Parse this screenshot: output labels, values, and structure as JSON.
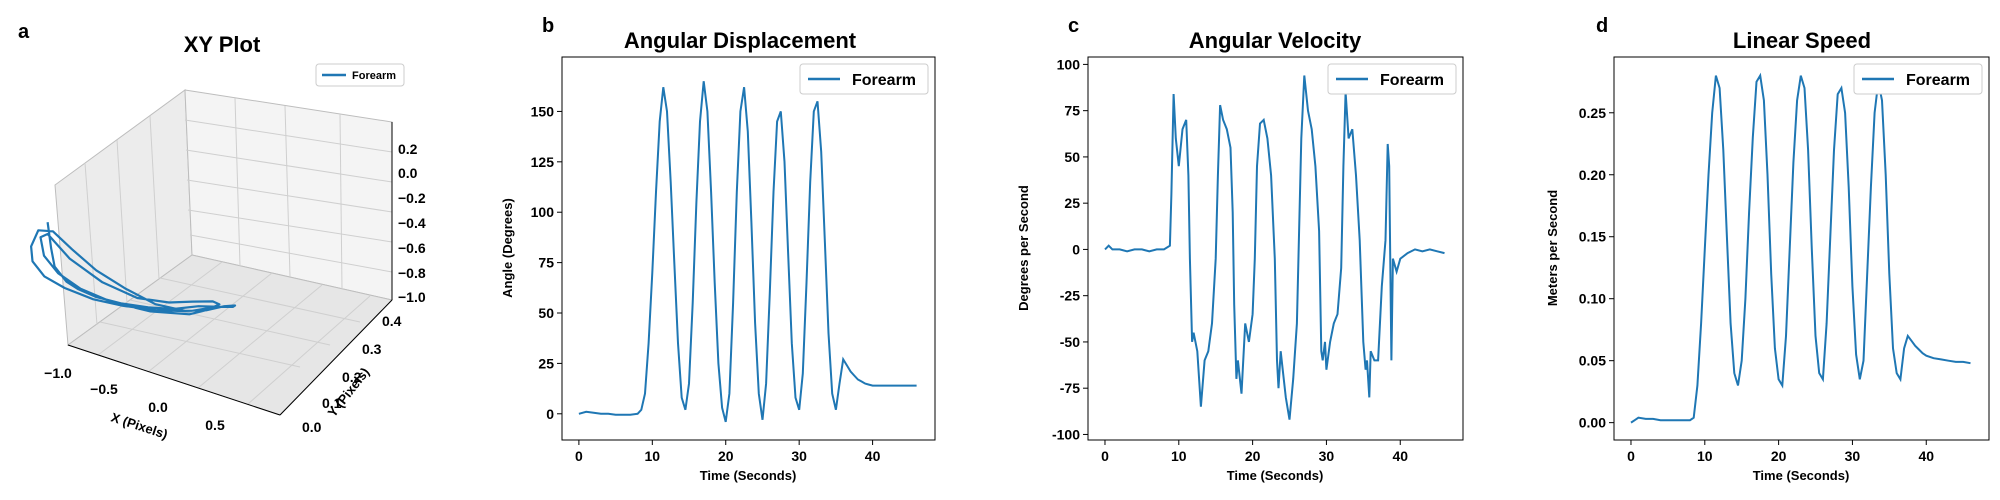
{
  "colors": {
    "series": "#1f77b4",
    "axis": "#000000",
    "pane": "#f2f2f2",
    "grid": "#d0d0d0"
  },
  "chart_data": [
    {
      "panel_label": "a",
      "type": "line3d",
      "title": "XY Plot",
      "xlabel": "X (Pixels)",
      "ylabel": "Y (Pixels)",
      "zlabel": "",
      "xlim": [
        -1.0,
        1.0
      ],
      "ylim": [
        0.0,
        0.4
      ],
      "zlim": [
        -1.0,
        0.2
      ],
      "xticks": [
        "−1.0",
        "−0.5",
        "0.0",
        "0.5"
      ],
      "yticks": [
        "0.0",
        "0.1",
        "0.2",
        "0.3",
        "0.4"
      ],
      "zticks": [
        "0.2",
        "0.0",
        "−0.2",
        "−0.4",
        "−0.6",
        "−0.8",
        "−1.0"
      ],
      "legend": {
        "label": "Forearm",
        "loc": "upper right"
      },
      "grid": true,
      "series": [
        {
          "name": "Forearm",
          "x": [
            -0.9,
            -0.75,
            -0.6,
            -0.4,
            -0.2,
            0.0,
            0.2,
            0.4,
            0.55,
            0.7,
            0.8,
            0.82,
            0.78,
            0.65,
            0.45,
            0.25,
            0.0,
            -0.25,
            -0.5,
            -0.7,
            -0.85,
            -0.9,
            -0.88,
            -0.75,
            -0.55,
            -0.3,
            0.0,
            0.25,
            0.5,
            0.7,
            0.8,
            0.75,
            0.6,
            0.35,
            0.1,
            -0.2,
            -0.5,
            -0.75,
            -0.9,
            -0.85,
            -0.7,
            -0.45,
            -0.15,
            0.15,
            0.45,
            0.7,
            0.82
          ],
          "y": [
            0.1,
            0.14,
            0.18,
            0.21,
            0.24,
            0.25,
            0.24,
            0.22,
            0.19,
            0.16,
            0.12,
            0.09,
            0.07,
            0.06,
            0.05,
            0.05,
            0.06,
            0.07,
            0.08,
            0.09,
            0.1,
            0.13,
            0.16,
            0.2,
            0.23,
            0.25,
            0.26,
            0.25,
            0.23,
            0.19,
            0.15,
            0.11,
            0.08,
            0.06,
            0.05,
            0.05,
            0.06,
            0.08,
            0.1,
            0.14,
            0.18,
            0.22,
            0.25,
            0.25,
            0.23,
            0.19,
            0.15
          ],
          "z": [
            -0.3,
            -0.5,
            -0.65,
            -0.75,
            -0.8,
            -0.82,
            -0.8,
            -0.75,
            -0.68,
            -0.58,
            -0.5,
            -0.45,
            -0.42,
            -0.44,
            -0.5,
            -0.55,
            -0.58,
            -0.55,
            -0.5,
            -0.42,
            -0.35,
            -0.4,
            -0.55,
            -0.68,
            -0.78,
            -0.83,
            -0.85,
            -0.82,
            -0.76,
            -0.66,
            -0.55,
            -0.48,
            -0.45,
            -0.48,
            -0.53,
            -0.57,
            -0.55,
            -0.48,
            -0.38,
            -0.45,
            -0.6,
            -0.72,
            -0.8,
            -0.82,
            -0.78,
            -0.68,
            -0.55
          ]
        }
      ]
    },
    {
      "panel_label": "b",
      "type": "line",
      "title": "Angular Displacement",
      "xlabel": "Time (Seconds)",
      "ylabel": "Angle (Degrees)",
      "xlim": [
        -2.3,
        48.5
      ],
      "ylim": [
        -13,
        177
      ],
      "xticks": [
        0,
        10,
        20,
        30,
        40
      ],
      "yticks": [
        0,
        25,
        50,
        75,
        100,
        125,
        150
      ],
      "legend": {
        "label": "Forearm",
        "loc": "upper right"
      },
      "grid": false,
      "series": [
        {
          "name": "Forearm",
          "x": [
            0,
            1,
            2,
            3,
            4,
            5,
            6,
            7,
            8,
            8.5,
            9,
            9.5,
            10,
            10.5,
            11,
            11.5,
            12,
            12.5,
            13,
            13.5,
            14,
            14.5,
            15,
            15.5,
            16,
            16.5,
            17,
            17.5,
            18,
            18.5,
            19,
            19.5,
            20,
            20.5,
            21,
            21.5,
            22,
            22.5,
            23,
            23.5,
            24,
            24.5,
            25,
            25.5,
            26,
            26.5,
            27,
            27.5,
            28,
            28.5,
            29,
            29.5,
            30,
            30.5,
            31,
            31.5,
            32,
            32.5,
            33,
            33.5,
            34,
            34.5,
            35,
            35.5,
            36,
            36.5,
            37,
            37.5,
            38,
            38.5,
            39,
            39.5,
            40,
            41,
            42,
            43,
            44,
            45,
            46
          ],
          "y": [
            0,
            1,
            0.5,
            0,
            0,
            -0.5,
            -0.5,
            -0.5,
            0,
            2,
            10,
            35,
            70,
            110,
            145,
            162,
            150,
            115,
            75,
            35,
            8,
            2,
            15,
            55,
            105,
            145,
            165,
            150,
            110,
            65,
            25,
            3,
            -4,
            10,
            55,
            110,
            150,
            162,
            140,
            95,
            45,
            10,
            -3,
            15,
            60,
            110,
            145,
            150,
            125,
            80,
            35,
            8,
            2,
            20,
            65,
            115,
            150,
            155,
            130,
            85,
            40,
            10,
            2,
            15,
            27,
            24,
            21,
            19,
            17,
            16,
            15,
            14.5,
            14,
            14,
            14,
            14,
            14,
            14,
            14
          ]
        }
      ]
    },
    {
      "panel_label": "c",
      "type": "line",
      "title": "Angular Velocity",
      "xlabel": "Time (Seconds)",
      "ylabel": "Degrees per Second",
      "xlim": [
        -2.3,
        48.5
      ],
      "ylim": [
        -103,
        104
      ],
      "xticks": [
        0,
        10,
        20,
        30,
        40
      ],
      "yticks": [
        -100,
        -75,
        -50,
        -25,
        0,
        25,
        50,
        75,
        100
      ],
      "legend": {
        "label": "Forearm",
        "loc": "upper right"
      },
      "grid": false,
      "series": [
        {
          "name": "Forearm",
          "x": [
            0,
            0.5,
            1,
            2,
            3,
            4,
            5,
            6,
            7,
            8,
            8.8,
            9,
            9.3,
            9.6,
            10,
            10.5,
            11,
            11.3,
            11.5,
            11.8,
            12,
            12.5,
            13,
            13.5,
            14,
            14.5,
            15,
            15.3,
            15.6,
            16,
            16.5,
            17,
            17.3,
            17.5,
            17.8,
            18,
            18.5,
            19,
            19.5,
            20,
            20.3,
            20.6,
            21,
            21.5,
            22,
            22.5,
            23,
            23.3,
            23.5,
            23.8,
            24,
            24.5,
            25,
            25.5,
            26,
            26.3,
            26.6,
            27,
            27.5,
            28,
            28.5,
            29,
            29.3,
            29.5,
            29.8,
            30,
            30.5,
            31,
            31.5,
            32,
            32.3,
            32.6,
            33,
            33.5,
            34,
            34.5,
            35,
            35.3,
            35.5,
            35.8,
            36,
            36.5,
            37,
            37.5,
            38,
            38.3,
            38.5,
            38.8,
            39,
            39.5,
            40,
            41,
            42,
            43,
            44,
            45,
            46
          ],
          "y": [
            0,
            2,
            0,
            0,
            -1,
            0,
            0,
            -1,
            0,
            0,
            2,
            30,
            84,
            60,
            45,
            65,
            70,
            40,
            -5,
            -50,
            -45,
            -55,
            -85,
            -60,
            -55,
            -40,
            -5,
            40,
            78,
            70,
            65,
            55,
            20,
            -30,
            -70,
            -60,
            -78,
            -40,
            -50,
            -35,
            -5,
            45,
            68,
            70,
            60,
            40,
            -5,
            -60,
            -75,
            -55,
            -62,
            -80,
            -92,
            -70,
            -40,
            10,
            60,
            94,
            75,
            65,
            45,
            10,
            -55,
            -60,
            -50,
            -65,
            -50,
            -40,
            -35,
            -10,
            45,
            85,
            60,
            65,
            40,
            5,
            -50,
            -65,
            -60,
            -80,
            -55,
            -60,
            -60,
            -20,
            5,
            57,
            45,
            -60,
            -5,
            -12,
            -5,
            -2,
            0,
            -1,
            0,
            -1,
            -2
          ]
        }
      ]
    },
    {
      "panel_label": "d",
      "type": "line",
      "title": "Linear Speed",
      "xlabel": "Time (Seconds)",
      "ylabel": "Meters per Second",
      "xlim": [
        -2.3,
        48.5
      ],
      "ylim": [
        -0.014,
        0.295
      ],
      "xticks": [
        0,
        10,
        20,
        30,
        40
      ],
      "yticks": [
        0.0,
        0.05,
        0.1,
        0.15,
        0.2,
        0.25
      ],
      "ytick_labels": [
        "0.00",
        "0.05",
        "0.10",
        "0.15",
        "0.20",
        "0.25"
      ],
      "legend": {
        "label": "Forearm",
        "loc": "upper right"
      },
      "grid": false,
      "series": [
        {
          "name": "Forearm",
          "x": [
            0,
            0.5,
            1,
            2,
            3,
            4,
            5,
            6,
            7,
            8,
            8.5,
            9,
            9.5,
            10,
            10.5,
            11,
            11.5,
            12,
            12.5,
            13,
            13.5,
            14,
            14.5,
            15,
            15.5,
            16,
            16.5,
            17,
            17.5,
            18,
            18.5,
            19,
            19.5,
            20,
            20.5,
            21,
            21.5,
            22,
            22.5,
            23,
            23.5,
            24,
            24.5,
            25,
            25.5,
            26,
            26.5,
            27,
            27.5,
            28,
            28.5,
            29,
            29.5,
            30,
            30.5,
            31,
            31.5,
            32,
            32.5,
            33,
            33.5,
            34,
            34.5,
            35,
            35.5,
            36,
            36.5,
            37,
            37.5,
            38,
            38.5,
            39,
            39.5,
            40,
            41,
            42,
            43,
            44,
            45,
            46
          ],
          "y": [
            0,
            0.002,
            0.004,
            0.003,
            0.003,
            0.002,
            0.002,
            0.002,
            0.002,
            0.002,
            0.004,
            0.03,
            0.08,
            0.14,
            0.2,
            0.25,
            0.28,
            0.27,
            0.22,
            0.15,
            0.08,
            0.04,
            0.03,
            0.05,
            0.1,
            0.17,
            0.23,
            0.275,
            0.28,
            0.26,
            0.2,
            0.12,
            0.06,
            0.035,
            0.03,
            0.07,
            0.14,
            0.21,
            0.26,
            0.28,
            0.27,
            0.22,
            0.14,
            0.07,
            0.04,
            0.035,
            0.08,
            0.15,
            0.22,
            0.265,
            0.27,
            0.25,
            0.19,
            0.11,
            0.055,
            0.035,
            0.05,
            0.12,
            0.19,
            0.25,
            0.275,
            0.26,
            0.2,
            0.12,
            0.06,
            0.04,
            0.035,
            0.06,
            0.07,
            0.066,
            0.062,
            0.059,
            0.056,
            0.054,
            0.052,
            0.051,
            0.05,
            0.049,
            0.049,
            0.048
          ]
        }
      ]
    }
  ]
}
